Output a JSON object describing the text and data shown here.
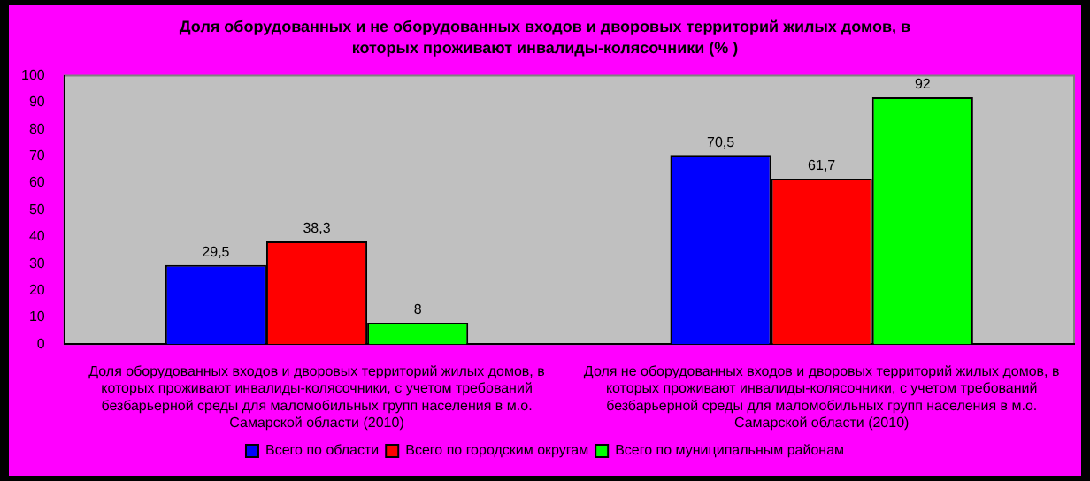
{
  "chart_data": {
    "type": "bar",
    "title": "Доля оборудованных и не оборудованных входов и дворовых территорий жилых домов, в которых проживают инвалиды-колясочники (% )",
    "categories": [
      "Доля оборудованных входов и дворовых территорий жилых домов, в которых проживают инвалиды-колясочники, с учетом требований безбарьерной среды для маломобильных групп населения в м.о. Самарской области (2010)",
      "Доля не оборудованных входов и дворовых территорий жилых домов, в которых проживают инвалиды-колясочники, с учетом требований безбарьерной среды для маломобильных групп населения в м.о. Самарской области (2010)"
    ],
    "series": [
      {
        "name": "Всего по области",
        "color": "#0000ff",
        "values": [
          29.5,
          70.5
        ],
        "value_labels": [
          "29,5",
          "70,5"
        ]
      },
      {
        "name": "Всего по городским округам",
        "color": "#ff0000",
        "values": [
          38.3,
          61.7
        ],
        "value_labels": [
          "38,3",
          "61,7"
        ]
      },
      {
        "name": "Всего по муниципальным районам",
        "color": "#00ff00",
        "values": [
          8,
          92
        ],
        "value_labels": [
          "8",
          "92"
        ]
      }
    ],
    "ylim": [
      0,
      100
    ],
    "yticks": [
      0,
      10,
      20,
      30,
      40,
      50,
      60,
      70,
      80,
      90,
      100
    ],
    "grid": false,
    "legend": "bottom"
  }
}
